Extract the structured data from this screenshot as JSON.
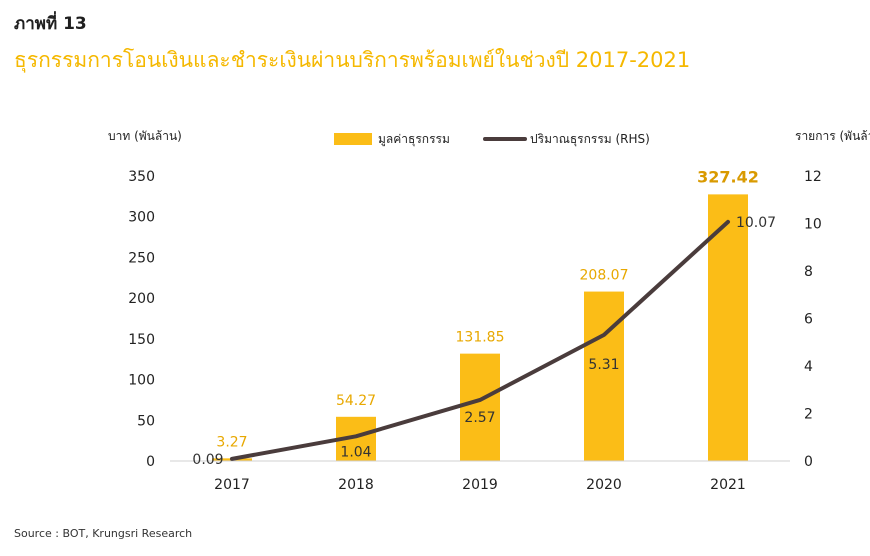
{
  "figure_label": "ภาพที่ 13",
  "title": "ธุรกรรมการโอนเงินและชำระเงินผ่านบริการพร้อมเพย์ในช่วงปี 2017-2021",
  "source": "Source : BOT, Krungsri Research",
  "colors": {
    "bar": "#fbbd17",
    "line": "#4a3c3c",
    "title": "#f5b800",
    "bar_label": "#e8a800",
    "highlight_label": "#d99a00"
  },
  "chart_data": {
    "type": "bar",
    "categories": [
      "2017",
      "2018",
      "2019",
      "2020",
      "2021"
    ],
    "y_left_label": "บาท (พันล้าน)",
    "y_right_label": "รายการ (พันล้าน)",
    "y_left_ticks": [
      "0",
      "50",
      "100",
      "150",
      "200",
      "250",
      "300",
      "350"
    ],
    "y_right_ticks": [
      "0",
      "2",
      "4",
      "6",
      "8",
      "10",
      "12"
    ],
    "ylim_left": [
      0,
      350
    ],
    "ylim_right": [
      0,
      12
    ],
    "legend_placement": "top-center",
    "series": [
      {
        "name": "มูลค่าธุรกรรม",
        "kind": "bar",
        "axis": "left",
        "values": [
          3.27,
          54.27,
          131.85,
          208.07,
          327.42
        ],
        "labels": [
          "3.27",
          "54.27",
          "131.85",
          "208.07",
          "327.42"
        ]
      },
      {
        "name": "ปริมาณธุรกรรม (RHS)",
        "kind": "line",
        "axis": "right",
        "values": [
          0.09,
          1.04,
          2.57,
          5.31,
          10.07
        ],
        "labels": [
          "0.09",
          "1.04",
          "2.57",
          "5.31",
          "10.07"
        ]
      }
    ]
  }
}
